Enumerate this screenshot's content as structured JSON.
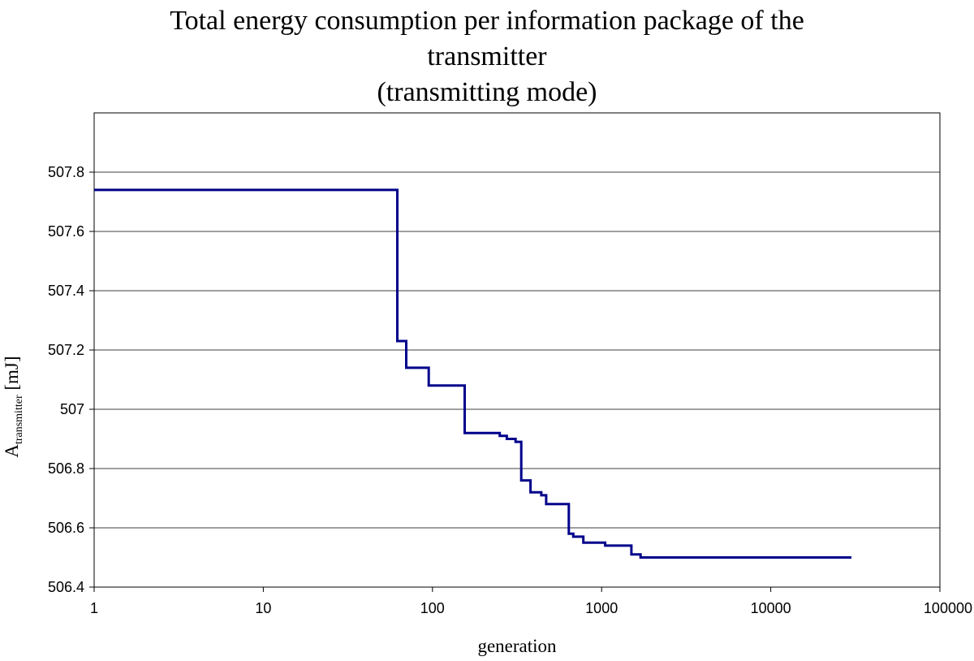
{
  "chart_data": {
    "type": "line",
    "title_lines": [
      "Total energy consumption per information package of the",
      "transmitter",
      "(transmitting mode)"
    ],
    "xlabel": "generation",
    "ylabel": {
      "main": "A",
      "subscript": "transmitter",
      "unit": " [mJ]"
    },
    "x_scale": "log",
    "xlim": [
      1,
      100000
    ],
    "ylim": [
      506.4,
      508.0
    ],
    "x_ticks": [
      1,
      10,
      100,
      1000,
      10000,
      100000
    ],
    "x_tick_labels": [
      "1",
      "10",
      "100",
      "1000",
      "10000",
      "100000"
    ],
    "y_ticks": [
      506.4,
      506.6,
      506.8,
      507.0,
      507.2,
      507.4,
      507.6,
      507.8
    ],
    "y_tick_labels": [
      "506.4",
      "506.6",
      "506.8",
      "507",
      "507.2",
      "507.4",
      "507.6",
      "507.8"
    ],
    "grid": {
      "y": true,
      "x": false
    },
    "line_color": "#00008b",
    "series": [
      {
        "step": true,
        "x": [
          1,
          62,
          66,
          70,
          95,
          155,
          250,
          275,
          310,
          335,
          380,
          440,
          470,
          640,
          680,
          780,
          1050,
          1500,
          1700,
          3600,
          30000
        ],
        "y": [
          507.74,
          507.23,
          507.23,
          507.14,
          507.08,
          506.92,
          506.91,
          506.9,
          506.89,
          506.76,
          506.72,
          506.71,
          506.68,
          506.58,
          506.57,
          506.55,
          506.54,
          506.51,
          506.5,
          506.5,
          506.5
        ]
      }
    ]
  }
}
